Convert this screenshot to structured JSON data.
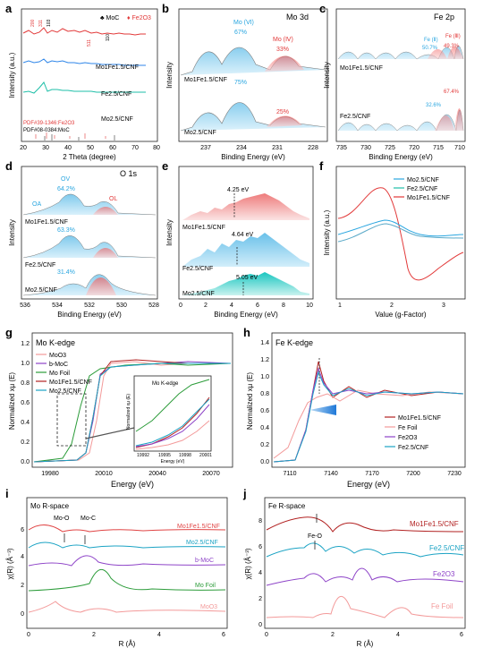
{
  "panels": {
    "a": {
      "letter": "a",
      "legend": {
        "moc": "MoC",
        "fe2o3": "Fe2O3"
      },
      "peaks": [
        "200",
        "311",
        "103",
        "110",
        "511"
      ],
      "samples": [
        "Mo1Fe1.5/CNF",
        "Fe2.5/CNF",
        "Mo2.5/CNF"
      ],
      "refs": [
        "PDF#39-1346:Fe2O3",
        "PDF#08-0384:MoC"
      ],
      "xlabel": "2 Theta (degree)",
      "ylabel": "Intensity (a.u.)",
      "xticks": [
        "20",
        "30",
        "40",
        "50",
        "60",
        "70",
        "80"
      ]
    },
    "b": {
      "letter": "b",
      "title": "Mo 3d",
      "labels": {
        "mo6": "Mo (Ⅵ)",
        "mo4": "Mo (Ⅳ)"
      },
      "top": {
        "sample": "Mo1Fe1.5/CNF",
        "mo6_pct": "67%",
        "mo4_pct": "33%"
      },
      "bottom": {
        "sample": "Mo2.5/CNF",
        "mo6_pct": "75%",
        "mo4_pct": "25%"
      },
      "xlabel": "Binding Energy (eV)",
      "ylabel": "Intensity",
      "xticks": [
        "237",
        "234",
        "231",
        "228"
      ]
    },
    "c": {
      "letter": "c",
      "title": "Fe 2p",
      "labels": {
        "fe2": "Fe (Ⅱ)",
        "fe3": "Fe (Ⅲ)"
      },
      "top": {
        "sample": "Mo1Fe1.5/CNF",
        "fe2_pct": "50.7%",
        "fe3_pct": "49.3%"
      },
      "bottom": {
        "sample": "Fe2.5/CNF",
        "fe2_pct": "32.6%",
        "fe3_pct": "67.4%"
      },
      "xlabel": "Binding Energy (eV)",
      "ylabel": "Intensity",
      "xticks": [
        "735",
        "730",
        "725",
        "720",
        "715",
        "710"
      ]
    },
    "d": {
      "letter": "d",
      "title": "O 1s",
      "labels": {
        "oa": "OA",
        "ov": "OV",
        "ol": "OL"
      },
      "rows": [
        {
          "sample": "Mo1Fe1.5/CNF",
          "pct": "64.2%"
        },
        {
          "sample": "Fe2.5/CNF",
          "pct": "63.3%"
        },
        {
          "sample": "Mo2.5/CNF",
          "pct": "31.4%"
        }
      ],
      "xlabel": "Binding Energy (eV)",
      "ylabel": "Intensity",
      "xticks": [
        "536",
        "534",
        "532",
        "530",
        "528"
      ]
    },
    "e": {
      "letter": "e",
      "rows": [
        {
          "sample": "Mo1Fe1.5/CNF",
          "value": "4.25 eV"
        },
        {
          "sample": "Fe2.5/CNF",
          "value": "4.64 eV"
        },
        {
          "sample": "Mo2.5/CNF",
          "value": "5.05 eV"
        }
      ],
      "xlabel": "Binding Energy (eV)",
      "ylabel": "Intensity",
      "xticks": [
        "0",
        "2",
        "4",
        "6",
        "8",
        "10"
      ]
    },
    "f": {
      "letter": "f",
      "legend": [
        "Mo2.5/CNF",
        "Fe2.5/CNF",
        "Mo1Fe1.5/CNF"
      ],
      "xlabel": "Value (g-Factor)",
      "ylabel": "Intensity (a.u.)",
      "xticks": [
        "1",
        "2",
        "3"
      ]
    },
    "g": {
      "letter": "g",
      "title": "Mo K-edge",
      "legend": [
        "MoO3",
        "b-MoC",
        "Mo Foil",
        "Mo1Fe1.5/CNF",
        "Mo2.5/CNF"
      ],
      "inset": {
        "title": "Mo K-edge",
        "ylabel": "Normalized xμ (E)",
        "xlabel": "Energy (eV)",
        "xticks": [
          "19992",
          "19995",
          "19998",
          "20001"
        ]
      },
      "xlabel": "Energy (eV)",
      "ylabel": "Normalized xμ (E)",
      "yticks": [
        "0.0",
        "0.2",
        "0.4",
        "0.6",
        "0.8",
        "1.0",
        "1.2"
      ],
      "xticks": [
        "19980",
        "20010",
        "20040",
        "20070"
      ]
    },
    "h": {
      "letter": "h",
      "title": "Fe K-edge",
      "legend": [
        "Mo1Fe1.5/CNF",
        "Fe Foil",
        "Fe2O3",
        "Fe2.5/CNF"
      ],
      "xlabel": "Energy (eV)",
      "ylabel": "Normalized xμ (E)",
      "yticks": [
        "0.0",
        "0.2",
        "0.4",
        "0.6",
        "0.8",
        "1.0",
        "1.2",
        "1.4"
      ],
      "xticks": [
        "7110",
        "7140",
        "7170",
        "7200",
        "7230"
      ]
    },
    "i": {
      "letter": "i",
      "title": "Mo R-space",
      "annotations": [
        "Mo-O",
        "Mo-C"
      ],
      "labels": [
        "Mo1Fe1.5/CNF",
        "Mo2.5/CNF",
        "b-MoC",
        "Mo Foil",
        "MoO3"
      ],
      "xlabel": "R (Å)",
      "ylabel": "χ(R) (Å⁻³)",
      "yticks": [
        "0",
        "2",
        "4",
        "6"
      ],
      "xticks": [
        "0",
        "2",
        "4",
        "6"
      ]
    },
    "j": {
      "letter": "j",
      "title": "Fe R-space",
      "annotations": [
        "Fe-O"
      ],
      "labels": [
        "Mo1Fe1.5/CNF",
        "Fe2.5/CNF",
        "Fe2O3",
        "Fe Foil"
      ],
      "xlabel": "R (Å)",
      "ylabel": "χ(R) (Å⁻³)",
      "yticks": [
        "0",
        "2",
        "4",
        "6",
        "8"
      ],
      "xticks": [
        "0",
        "2",
        "4",
        "6"
      ]
    }
  }
}
